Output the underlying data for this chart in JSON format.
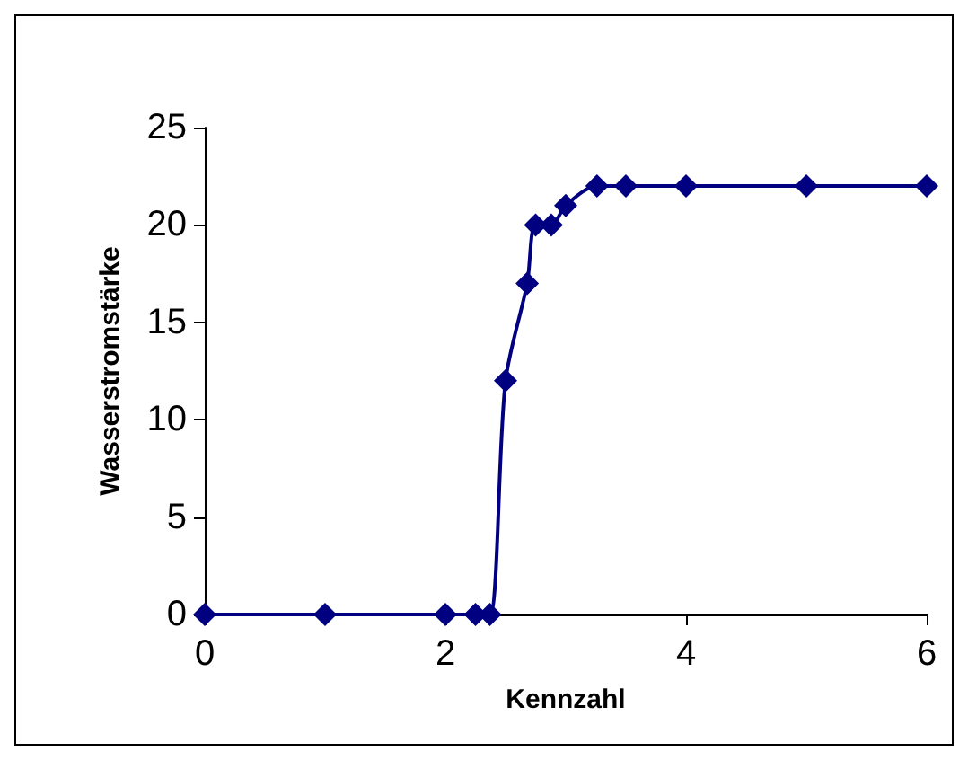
{
  "chart_data": {
    "type": "line",
    "xlabel": "Kennzahl",
    "ylabel": "Wasserstromstärke",
    "x": [
      0,
      1,
      2,
      2.25,
      2.37,
      2.5,
      2.68,
      2.75,
      2.88,
      3,
      3.26,
      3.5,
      4,
      5,
      6
    ],
    "series": [
      {
        "color": "#000080",
        "values": [
          0,
          0,
          0,
          0,
          0,
          12,
          17,
          20,
          20,
          21,
          22,
          22,
          22,
          22,
          22
        ]
      }
    ],
    "xlim": [
      0,
      6
    ],
    "xticks": [
      0,
      2,
      4,
      6
    ],
    "ylim": [
      0,
      25
    ],
    "yticks": [
      0,
      5,
      10,
      15,
      20,
      25
    ],
    "grid": false,
    "marker": "diamond",
    "line_style": "solid"
  }
}
